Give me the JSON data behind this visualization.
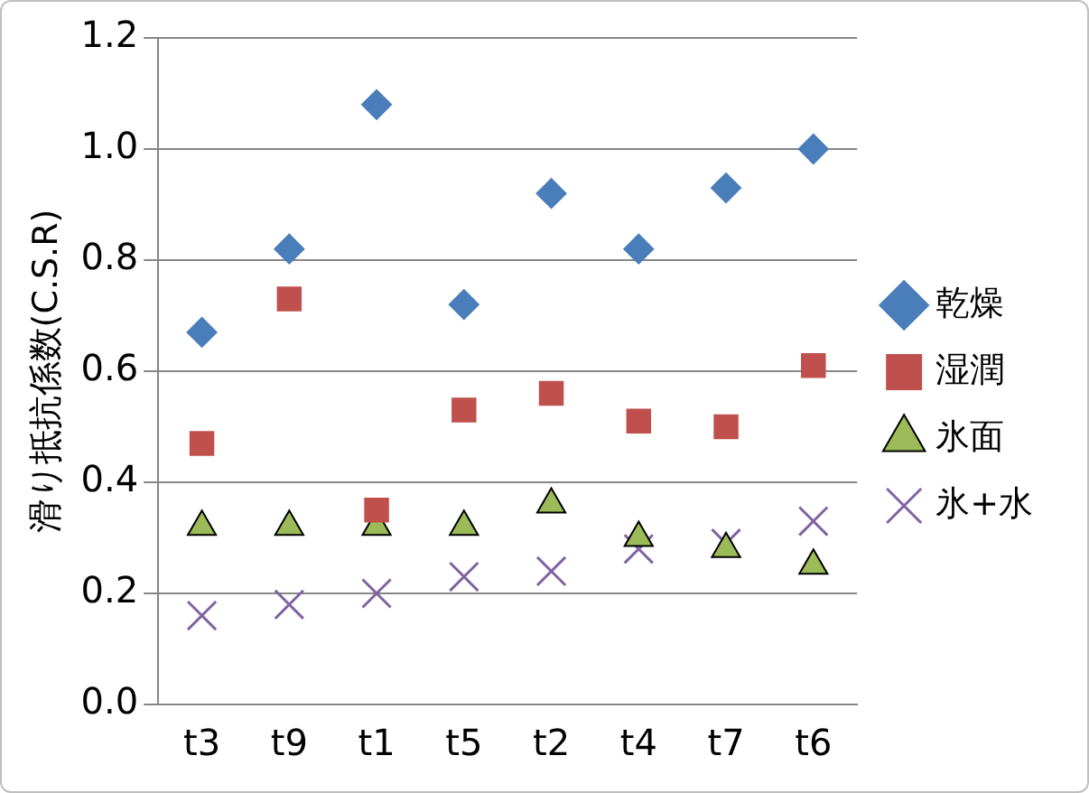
{
  "chart_data": {
    "type": "scatter",
    "ylabel": "滑り抵抗係数(C.S.R)",
    "categories": [
      "t3",
      "t9",
      "t1",
      "t5",
      "t2",
      "t4",
      "t7",
      "t6"
    ],
    "ylim": [
      0,
      1.2
    ],
    "yticks": [
      {
        "value": 0,
        "label": "0.0"
      },
      {
        "value": 0.2,
        "label": "0.2"
      },
      {
        "value": 0.4,
        "label": "0.4"
      },
      {
        "value": 0.6,
        "label": "0.6"
      },
      {
        "value": 0.8,
        "label": "0.8"
      },
      {
        "value": 1,
        "label": "1.0"
      },
      {
        "value": 1.2,
        "label": "1.2"
      }
    ],
    "grid": "y",
    "legend": "right",
    "series": [
      {
        "name": "乾燥",
        "color": "#4a7ebb",
        "marker": "diamond",
        "values": [
          0.67,
          0.82,
          1.08,
          0.72,
          0.92,
          0.82,
          0.93,
          1.0
        ]
      },
      {
        "name": "湿潤",
        "color": "#c0504d",
        "marker": "square",
        "values": [
          0.47,
          0.73,
          0.35,
          0.53,
          0.56,
          0.51,
          0.5,
          0.61
        ]
      },
      {
        "name": "氷面",
        "color": "#9bbb59",
        "marker": "triangle",
        "values": [
          0.32,
          0.32,
          0.32,
          0.32,
          0.36,
          0.3,
          0.28,
          0.25
        ]
      },
      {
        "name": "氷+水",
        "color": "#8064a2",
        "marker": "cross",
        "values": [
          0.16,
          0.18,
          0.2,
          0.23,
          0.24,
          0.28,
          0.29,
          0.33
        ]
      }
    ]
  }
}
